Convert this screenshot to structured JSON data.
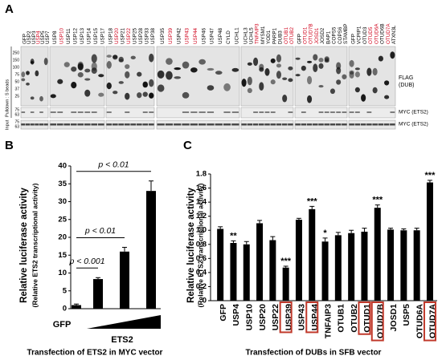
{
  "panel_a": {
    "letter": "A",
    "groups": [
      {
        "lanes": [
          {
            "label": "GFP"
          },
          {
            "label": "USP2"
          },
          {
            "label": "USP3"
          },
          {
            "label": "USP4",
            "red": true
          },
          {
            "label": "USP5"
          },
          {
            "label": "USP7"
          }
        ]
      },
      {
        "lanes": [
          {
            "label": "USP8"
          },
          {
            "label": "USP10",
            "red": true
          },
          {
            "label": "USP11"
          },
          {
            "label": "USP12"
          },
          {
            "label": "USP13"
          },
          {
            "label": "USP14"
          },
          {
            "label": "USP15"
          },
          {
            "label": "USP17"
          }
        ]
      },
      {
        "lanes": [
          {
            "label": "USP18"
          },
          {
            "label": "USP20",
            "red": true
          },
          {
            "label": "USP21"
          },
          {
            "label": "USP22",
            "red": true
          },
          {
            "label": "USP25"
          },
          {
            "label": "USP28"
          },
          {
            "label": "USP33"
          },
          {
            "label": "USP38"
          }
        ]
      },
      {
        "lanes": [
          {
            "label": "USP35"
          },
          {
            "label": "USP39",
            "red": true
          },
          {
            "label": "USP42"
          },
          {
            "label": "USP43",
            "red": true
          },
          {
            "label": "USP44",
            "red": true
          },
          {
            "label": "USP46"
          },
          {
            "label": "USP47"
          },
          {
            "label": "USP48"
          },
          {
            "label": "CYLD"
          },
          {
            "label": "UCHL1"
          }
        ]
      },
      {
        "lanes": [
          {
            "label": "UCHL3"
          },
          {
            "label": "UCHL5"
          },
          {
            "label": "TNFAIP3",
            "red": true
          },
          {
            "label": "MYSM1"
          },
          {
            "label": "YOD1"
          },
          {
            "label": "PARP1"
          },
          {
            "label": "DUB3"
          },
          {
            "label": "OTUB1",
            "red": true
          },
          {
            "label": "OTUB2",
            "red": true
          }
        ]
      },
      {
        "lanes": [
          {
            "label": "GFP"
          },
          {
            "label": "OTUD1",
            "red": true
          },
          {
            "label": "OTUD7B",
            "red": true
          },
          {
            "label": "JOSD1",
            "red": true
          },
          {
            "label": "JOSD2"
          },
          {
            "label": "BAP1"
          },
          {
            "label": "COPS5"
          },
          {
            "label": "COPS6"
          },
          {
            "label": "STAMBP"
          }
        ]
      },
      {
        "lanes": [
          {
            "label": "GFP"
          },
          {
            "label": "VCPIP1"
          },
          {
            "label": "OTUD3"
          },
          {
            "label": "OTUD5",
            "red": true
          },
          {
            "label": "OTUD6A",
            "red": true
          },
          {
            "label": "OTUD6B"
          },
          {
            "label": "OTUD7A",
            "red": true
          },
          {
            "label": "ATXN3L"
          }
        ]
      }
    ],
    "mw_pulldown": [
      250,
      150,
      100,
      75,
      50,
      37,
      25
    ],
    "mw_myc": [
      75,
      63
    ],
    "mw_input": [
      75,
      63
    ],
    "row_labels": [
      "FLAG",
      "(DUB)",
      "MYC (ETS2)",
      "MYC (ETS2)"
    ],
    "side_labels": [
      "Pulldown : S beads",
      "Input"
    ]
  },
  "chart_data": [
    {
      "type": "bar",
      "letter": "B",
      "categories": [
        "GFP",
        null,
        null,
        null
      ],
      "group_label": "ETS2",
      "values": [
        1,
        8.3,
        16,
        33
      ],
      "errors": [
        0.3,
        0.4,
        1.2,
        2.8
      ],
      "color": "#000000",
      "ylabel": "Relative luciferase activity",
      "ylabel2": "(Relative ETS2 transcriptional activity)",
      "xlabel": "Transfection of ETS2 in MYC vector",
      "ylim": [
        0,
        40
      ],
      "yticks": [
        0,
        5,
        10,
        15,
        20,
        25,
        30,
        35,
        40
      ],
      "comparisons": [
        {
          "label": "p < 0.001",
          "from": 0,
          "to": 1
        },
        {
          "label": "p < 0.01",
          "from": 0,
          "to": 2
        },
        {
          "label": "p < 0.01",
          "from": 0,
          "to": 3
        }
      ]
    },
    {
      "type": "bar",
      "letter": "C",
      "categories": [
        "GFP",
        "USP4",
        "USP10",
        "USP20",
        "USP22",
        "USP39",
        "USP43",
        "USP44",
        "TNFAIP3",
        "OTUB1",
        "OTUB2",
        "OTUD1",
        "OTUD7B",
        "JOSD1",
        "USP5",
        "OTUD6A",
        "OTUD7A"
      ],
      "values": [
        1.02,
        0.82,
        0.8,
        1.1,
        0.86,
        0.47,
        1.15,
        1.3,
        0.84,
        0.93,
        0.96,
        0.98,
        1.32,
        1.01,
        1.0,
        1.0,
        1.68
      ],
      "errors": [
        0.03,
        0.03,
        0.04,
        0.04,
        0.05,
        0.02,
        0.02,
        0.04,
        0.05,
        0.04,
        0.04,
        0.05,
        0.04,
        0.02,
        0.02,
        0.03,
        0.03
      ],
      "stars": [
        null,
        "**",
        null,
        null,
        null,
        "***",
        null,
        "***",
        "*",
        null,
        null,
        null,
        "***",
        null,
        null,
        null,
        "***"
      ],
      "boxed": [
        false,
        false,
        false,
        false,
        false,
        true,
        false,
        true,
        false,
        false,
        false,
        true,
        true,
        false,
        false,
        false,
        true
      ],
      "box_color": "#c0392b",
      "color": "#000000",
      "ylabel": "Relative luciferase activity",
      "ylabel2": "(Relative ETS2 transcriptional activity)",
      "xlabel": "Transfection of DUBs in SFB vector",
      "ylim": [
        0,
        1.8
      ],
      "yticks": [
        0,
        0.2,
        0.4,
        0.6,
        0.8,
        {
          "value": 1,
          "label": "1.0"
        },
        1.2,
        1.4,
        1.6,
        1.8
      ]
    }
  ]
}
